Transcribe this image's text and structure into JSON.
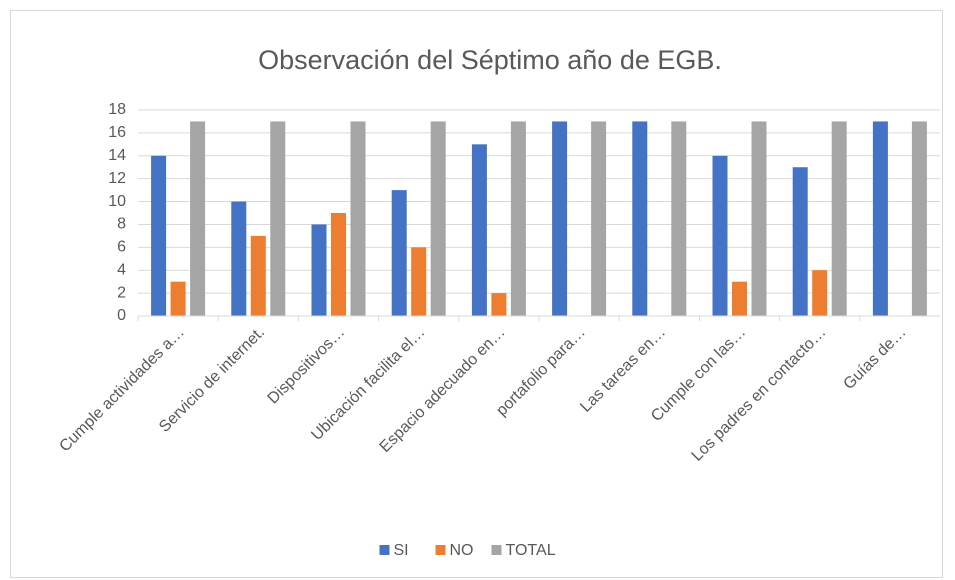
{
  "chart_data": {
    "type": "bar",
    "title": "Observación del Séptimo año de EGB.",
    "categories": [
      "Cumple actividades a…",
      "Servicio de internet.",
      "Dispositivos…",
      "Ubicación facilita el…",
      "Espacio adecuado en…",
      "portafolio para…",
      "Las tareas en…",
      "Cumple con las…",
      "Los padres en contacto…",
      "Guías de…"
    ],
    "series": [
      {
        "name": "SI",
        "color": "#4472c4",
        "values": [
          14,
          10,
          8,
          11,
          15,
          17,
          17,
          14,
          13,
          17
        ]
      },
      {
        "name": "NO",
        "color": "#ed7d31",
        "values": [
          3,
          7,
          9,
          6,
          2,
          0,
          0,
          3,
          4,
          0
        ]
      },
      {
        "name": "TOTAL",
        "color": "#a5a5a5",
        "values": [
          17,
          17,
          17,
          17,
          17,
          17,
          17,
          17,
          17,
          17
        ]
      }
    ],
    "ylim": [
      0,
      18
    ],
    "yticks": [
      0,
      2,
      4,
      6,
      8,
      10,
      12,
      14,
      16,
      18
    ],
    "grid": true,
    "legend": "bottom"
  }
}
